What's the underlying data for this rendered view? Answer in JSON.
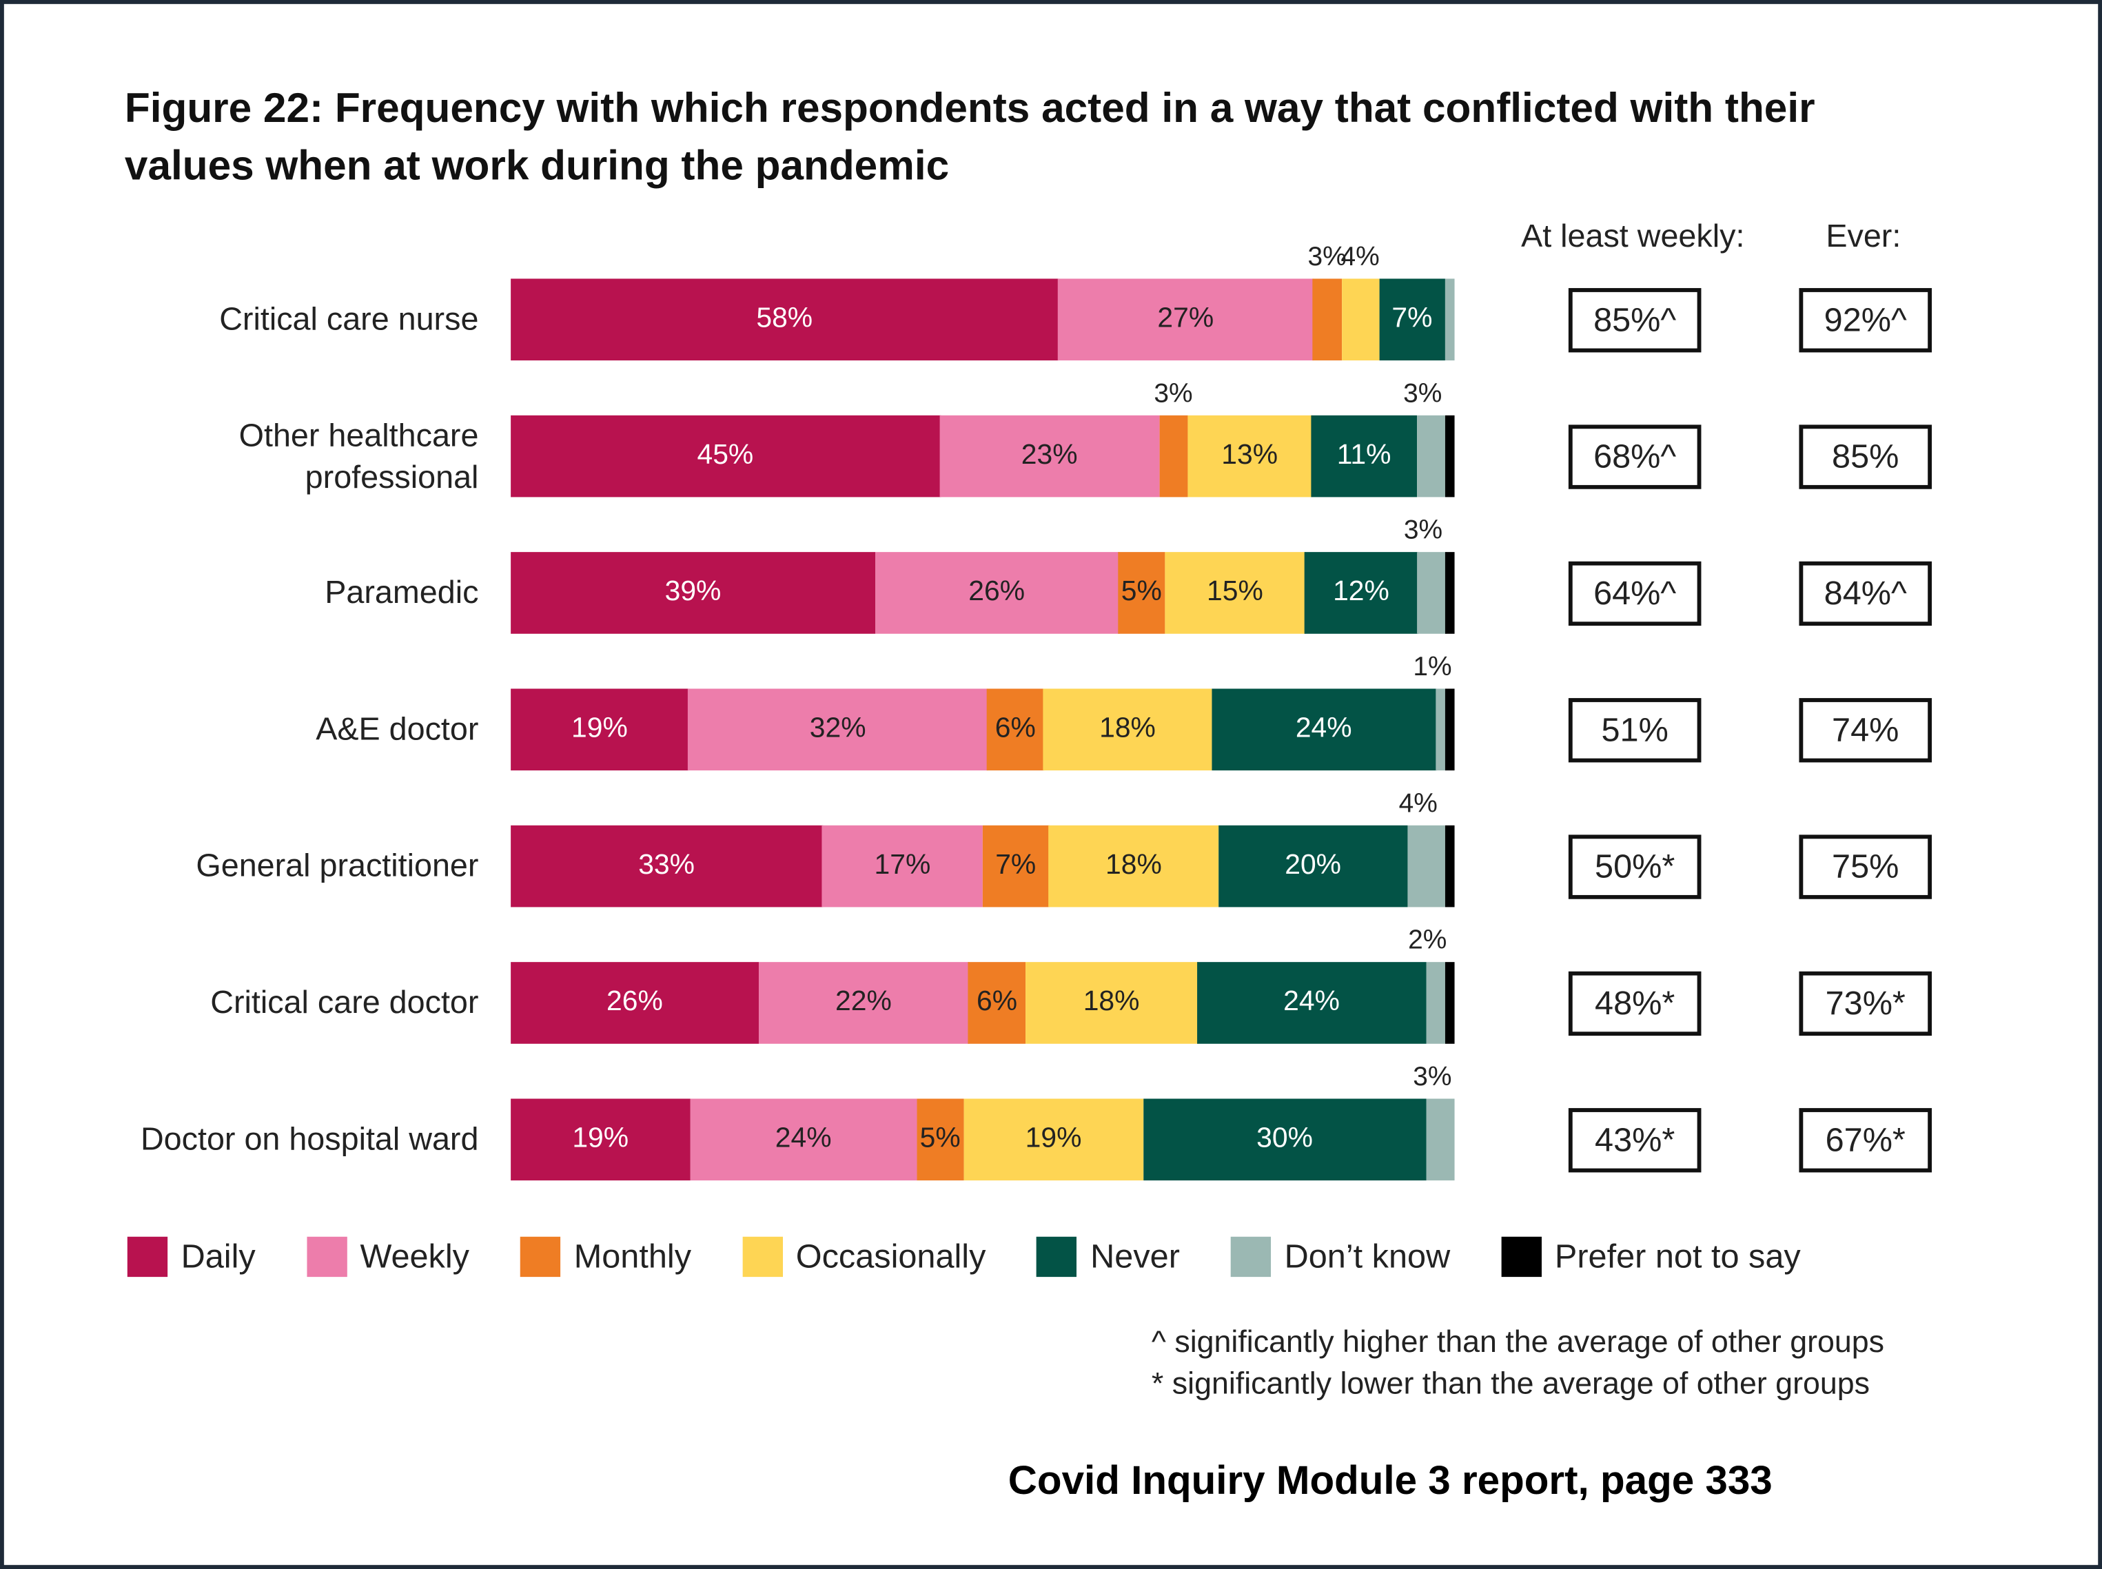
{
  "title": "Figure 22: Frequency with which respondents acted in a way that conflicted with their values when at work during the pandemic",
  "chart_data": {
    "type": "bar",
    "orientation": "horizontal-stacked",
    "title": "Figure 22: Frequency with which respondents acted in a way that conflicted with their values when at work during the pandemic",
    "xlim": [
      0,
      100
    ],
    "series": [
      {
        "name": "Daily",
        "color": "#b8124f"
      },
      {
        "name": "Weekly",
        "color": "#ed7dab"
      },
      {
        "name": "Monthly",
        "color": "#ef7d24"
      },
      {
        "name": "Occasionally",
        "color": "#fed554"
      },
      {
        "name": "Never",
        "color": "#035346"
      },
      {
        "name": "Don’t know",
        "color": "#9bb8b3"
      },
      {
        "name": "Prefer not to say",
        "color": "#000000"
      }
    ],
    "categories": [
      "Critical care nurse",
      "Other healthcare professional",
      "Paramedic",
      "A&E doctor",
      "General practitioner",
      "Critical care doctor",
      "Doctor on hospital ward"
    ],
    "rows": [
      {
        "label": "Critical care nurse",
        "values": [
          58,
          27,
          3,
          4,
          7,
          1,
          0
        ],
        "labels": [
          "58%",
          "27%",
          "3%",
          "4%",
          "7%",
          "",
          ""
        ],
        "modes": [
          "in",
          "in",
          "above",
          "above",
          "in",
          "none",
          "none"
        ],
        "weekly": "85%^",
        "ever": "92%^"
      },
      {
        "label": "Other healthcare professional",
        "values": [
          45,
          23,
          3,
          13,
          11,
          3,
          1
        ],
        "labels": [
          "45%",
          "23%",
          "3%",
          "13%",
          "11%",
          "3%",
          ""
        ],
        "modes": [
          "in",
          "in",
          "above",
          "in",
          "in",
          "above",
          "none"
        ],
        "weekly": "68%^",
        "ever": "85%"
      },
      {
        "label": "Paramedic",
        "values": [
          39,
          26,
          5,
          15,
          12,
          3,
          1
        ],
        "labels": [
          "39%",
          "26%",
          "5%",
          "15%",
          "12%",
          "3%",
          ""
        ],
        "modes": [
          "in",
          "in",
          "in",
          "in",
          "in",
          "above",
          "none"
        ],
        "weekly": "64%^",
        "ever": "84%^"
      },
      {
        "label": "A&E doctor",
        "values": [
          19,
          32,
          6,
          18,
          24,
          1,
          1
        ],
        "labels": [
          "19%",
          "32%",
          "6%",
          "18%",
          "24%",
          "1%",
          ""
        ],
        "modes": [
          "in",
          "in",
          "in",
          "in",
          "in",
          "above",
          "none"
        ],
        "weekly": "51%",
        "ever": "74%"
      },
      {
        "label": "General practitioner",
        "values": [
          33,
          17,
          7,
          18,
          20,
          4,
          1
        ],
        "labels": [
          "33%",
          "17%",
          "7%",
          "18%",
          "20%",
          "4%",
          ""
        ],
        "modes": [
          "in",
          "in",
          "in",
          "in",
          "in",
          "above",
          "none"
        ],
        "weekly": "50%*",
        "ever": "75%"
      },
      {
        "label": "Critical care doctor",
        "values": [
          26,
          22,
          6,
          18,
          24,
          2,
          1
        ],
        "labels": [
          "26%",
          "22%",
          "6%",
          "18%",
          "24%",
          "2%",
          ""
        ],
        "modes": [
          "in",
          "in",
          "in",
          "in",
          "in",
          "above",
          "none"
        ],
        "weekly": "48%*",
        "ever": "73%*"
      },
      {
        "label": "Doctor on hospital ward",
        "values": [
          19,
          24,
          5,
          19,
          30,
          3,
          0
        ],
        "labels": [
          "19%",
          "24%",
          "5%",
          "19%",
          "30%",
          "3%",
          ""
        ],
        "modes": [
          "in",
          "in",
          "in",
          "in",
          "in",
          "above",
          "none"
        ],
        "weekly": "43%*",
        "ever": "67%*"
      }
    ],
    "summary_headers": {
      "weekly": "At least weekly:",
      "ever": "Ever:"
    },
    "legend_placement": "bottom"
  },
  "notes": [
    "^ significantly higher than the average of other groups",
    "* significantly lower than the average of other groups"
  ],
  "source": "Covid Inquiry Module 3 report, page 333"
}
